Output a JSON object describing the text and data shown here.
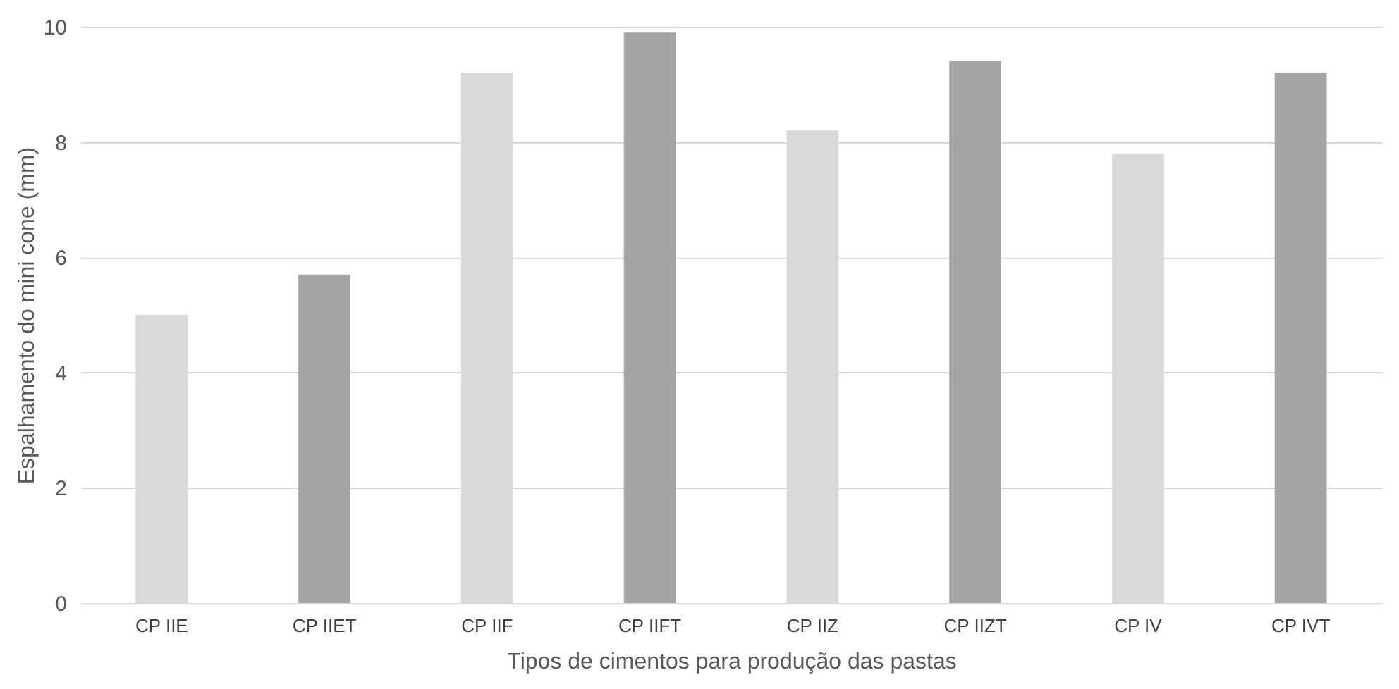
{
  "chart_data": {
    "type": "bar",
    "xlabel": "Tipos de cimentos para produção das pastas",
    "ylabel": "Espalhamento do mini cone (mm)",
    "categories": [
      "CP IIE",
      "CP IIET",
      "CP IIF",
      "CP IIFT",
      "CP IIZ",
      "CP IIZT",
      "CP IV",
      "CP IVT"
    ],
    "values": [
      5.0,
      5.7,
      9.2,
      9.9,
      8.2,
      9.4,
      7.8,
      9.2
    ],
    "colors": [
      "#d9d9d9",
      "#a5a5a5",
      "#d9d9d9",
      "#a5a5a5",
      "#d9d9d9",
      "#a5a5a5",
      "#d9d9d9",
      "#a5a5a5"
    ],
    "ylim": [
      0,
      10
    ],
    "yticks": [
      0,
      2,
      4,
      6,
      8,
      10
    ],
    "grid": "y"
  }
}
